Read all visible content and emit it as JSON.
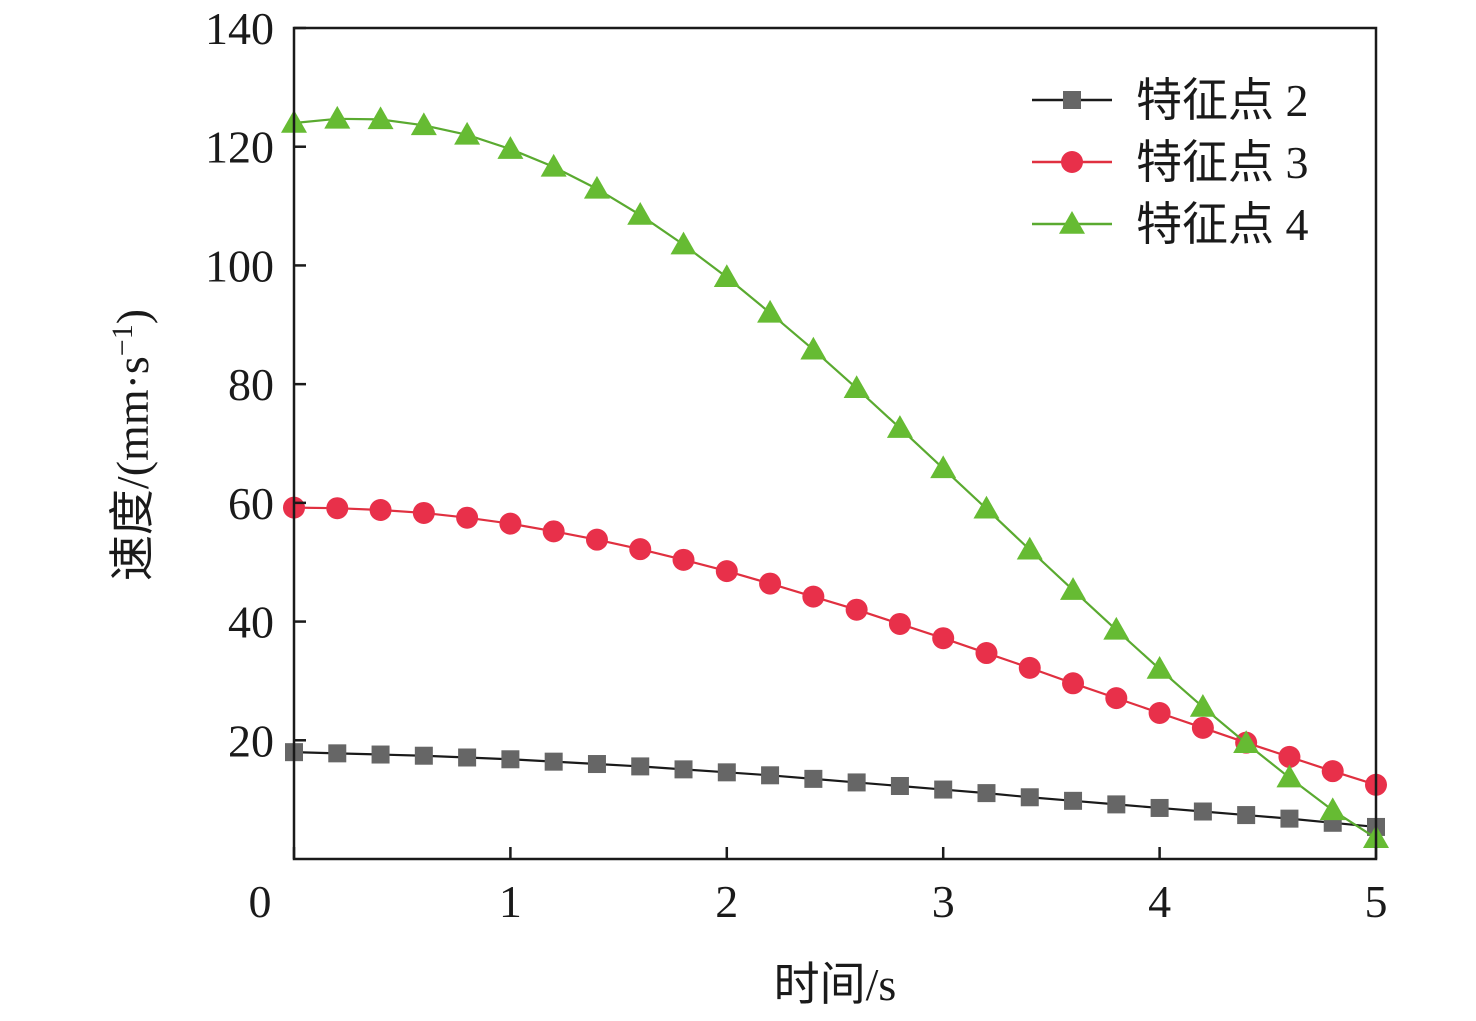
{
  "chart_data": {
    "type": "line",
    "xlabel": "时间/s",
    "ylabel_main": "速度/(mm·s",
    "ylabel_exponent": "−1",
    "ylabel_close": ")",
    "xlim": [
      0,
      5
    ],
    "ylim": [
      0,
      140
    ],
    "xticks": [
      "0",
      "1",
      "2",
      "3",
      "4",
      "5"
    ],
    "yticks": [
      "20",
      "40",
      "60",
      "80",
      "100",
      "120",
      "140"
    ],
    "grid": false,
    "legend_position": "top-right",
    "x": [
      0,
      0.2,
      0.4,
      0.6,
      0.8,
      1.0,
      1.2,
      1.4,
      1.6,
      1.8,
      2.0,
      2.2,
      2.4,
      2.6,
      2.8,
      3.0,
      3.2,
      3.4,
      3.6,
      3.8,
      4.0,
      4.2,
      4.4,
      4.6,
      4.8,
      5.0
    ],
    "series": [
      {
        "name": "特征点 2",
        "marker": "square",
        "line_color": "#1a1a1a",
        "marker_color": "#666666",
        "values": [
          18.0,
          17.8,
          17.6,
          17.4,
          17.1,
          16.8,
          16.4,
          16.0,
          15.6,
          15.1,
          14.6,
          14.1,
          13.5,
          12.9,
          12.3,
          11.7,
          11.1,
          10.4,
          9.8,
          9.2,
          8.6,
          8.0,
          7.4,
          6.8,
          6.1,
          5.4
        ]
      },
      {
        "name": "特征点 3",
        "marker": "circle",
        "line_color": "#e03040",
        "marker_color": "#e8304a",
        "values": [
          59.2,
          59.1,
          58.8,
          58.3,
          57.5,
          56.5,
          55.2,
          53.8,
          52.2,
          50.4,
          48.5,
          46.4,
          44.2,
          42.0,
          39.6,
          37.2,
          34.7,
          32.2,
          29.6,
          27.1,
          24.6,
          22.1,
          19.6,
          17.2,
          14.8,
          12.5
        ]
      },
      {
        "name": "特征点 4",
        "marker": "triangle",
        "line_color": "#5aaa30",
        "marker_color": "#66bb33",
        "values": [
          124.0,
          124.7,
          124.6,
          123.6,
          122.0,
          119.6,
          116.6,
          112.9,
          108.5,
          103.5,
          98.0,
          92.0,
          85.8,
          79.3,
          72.6,
          65.8,
          59.0,
          52.1,
          45.3,
          38.6,
          32.0,
          25.6,
          19.5,
          13.7,
          8.2,
          3.5
        ]
      }
    ]
  }
}
